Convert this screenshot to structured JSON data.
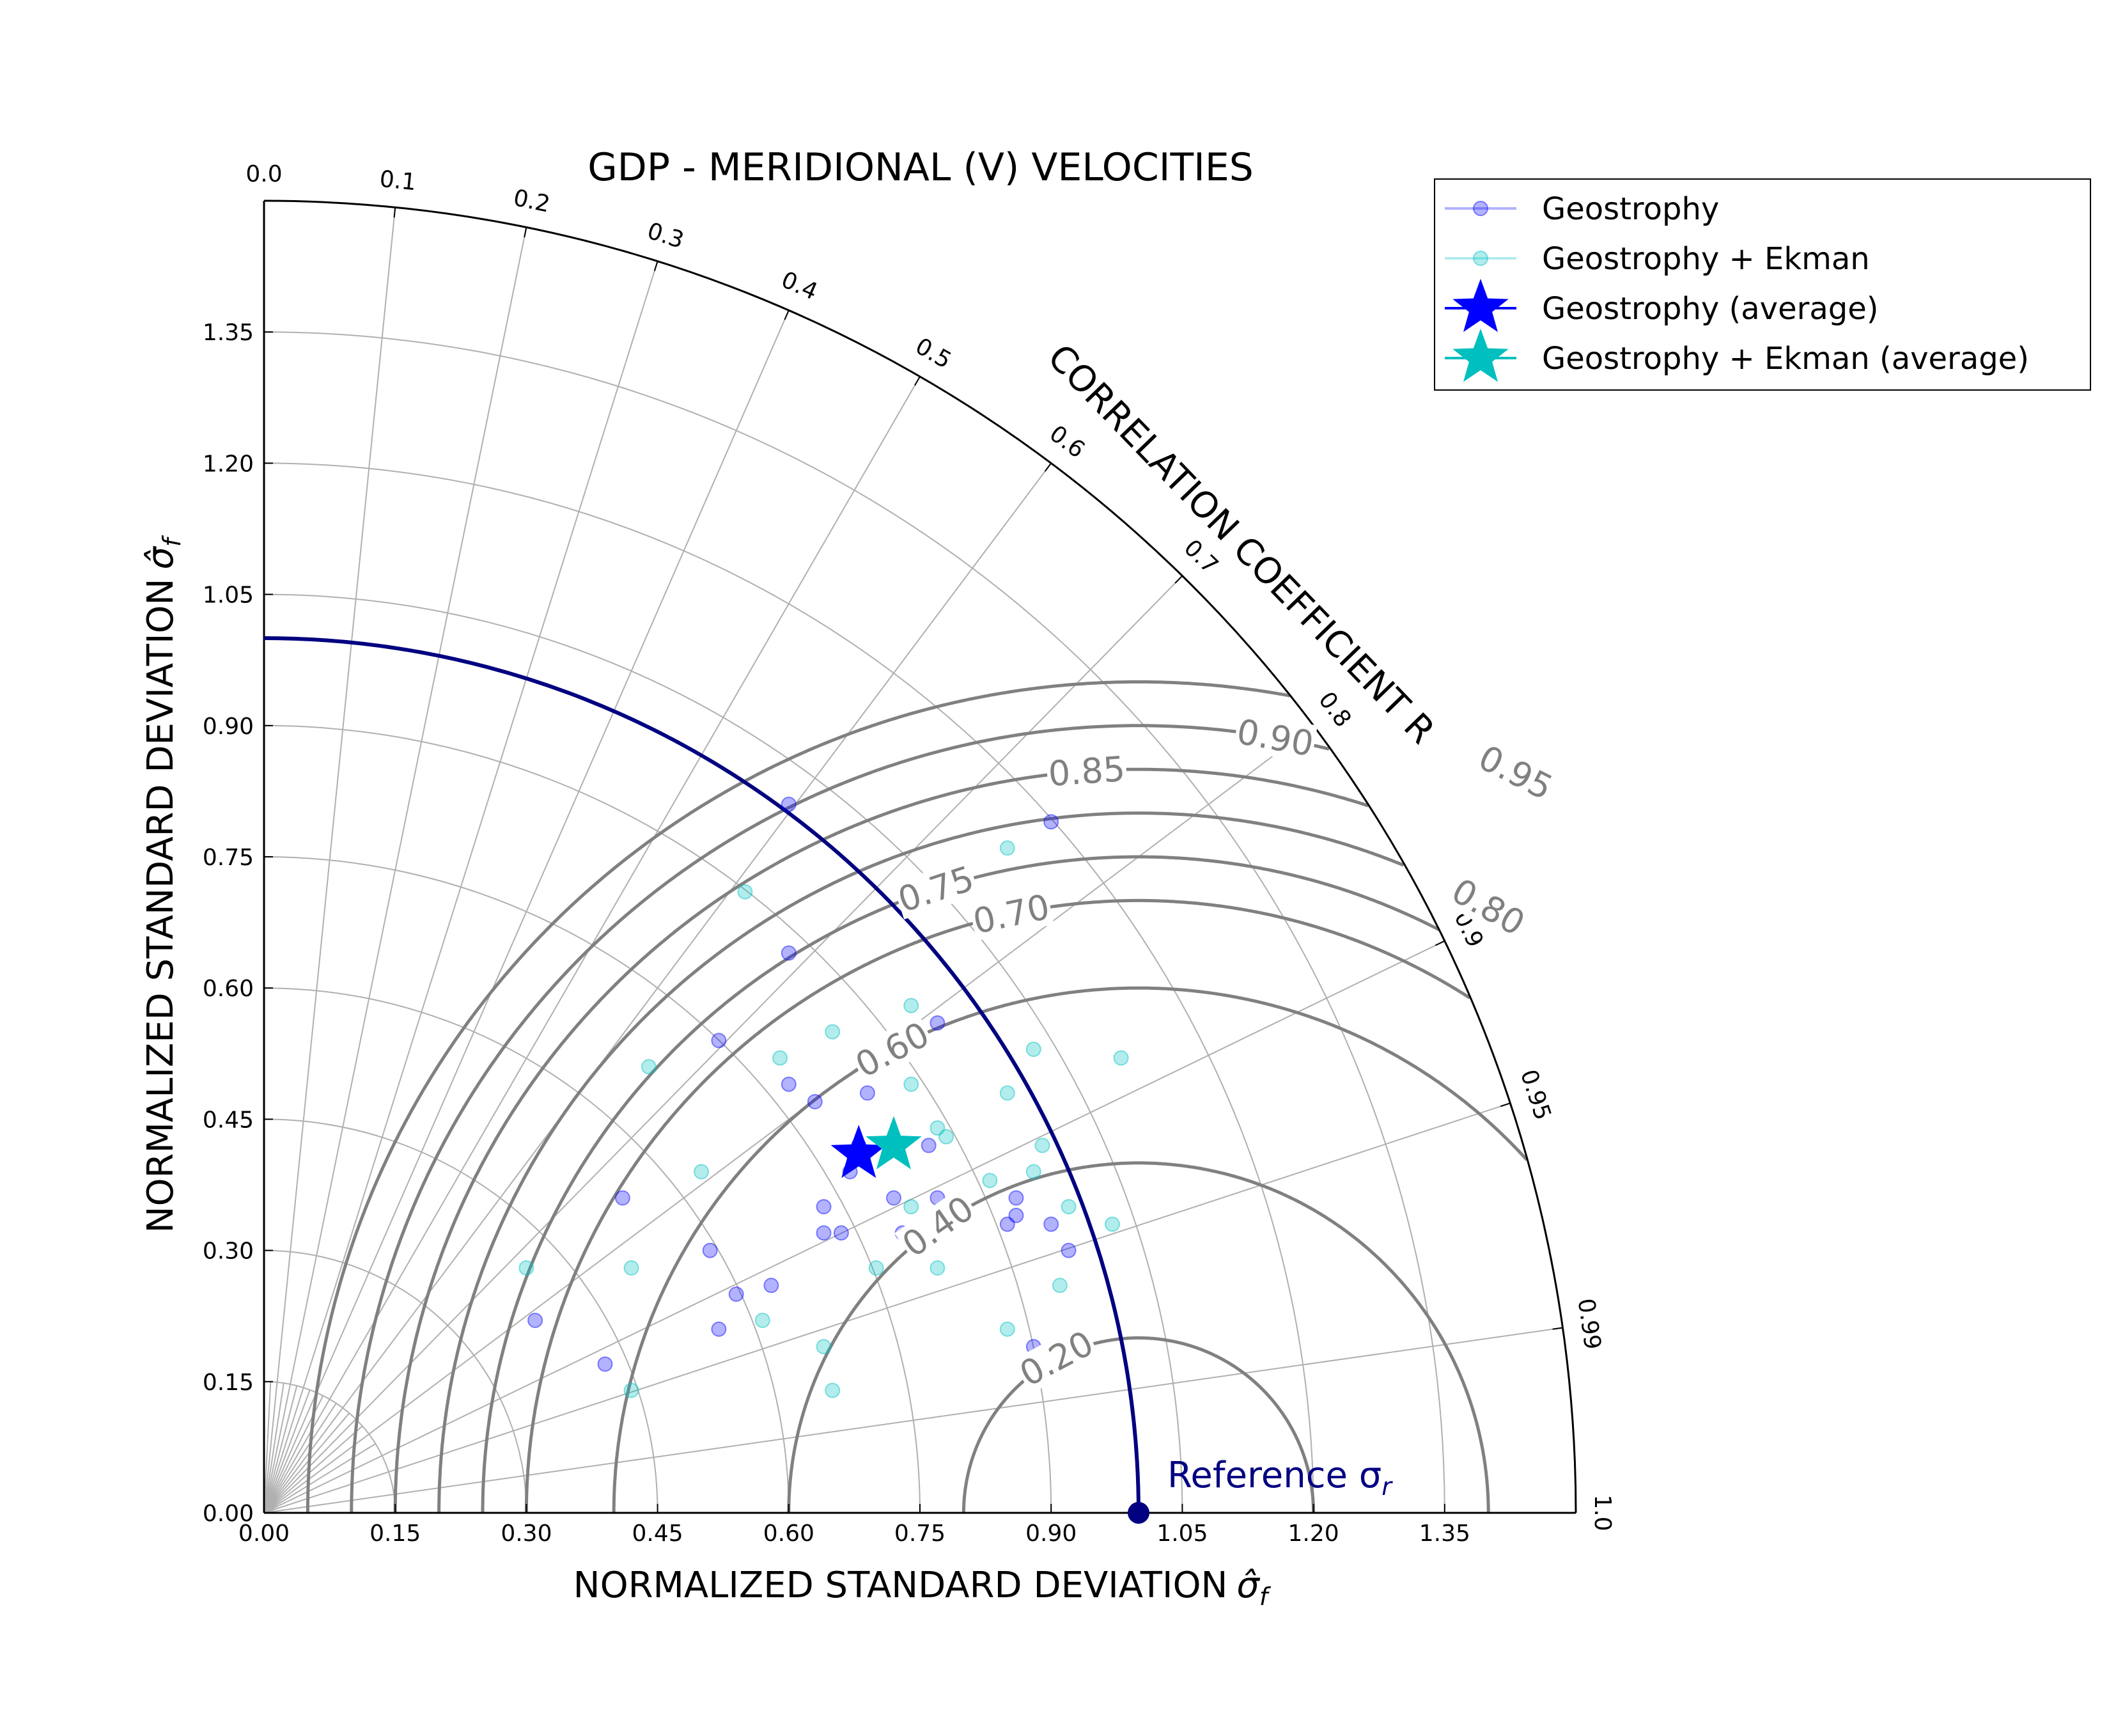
{
  "chart_data": {
    "type": "scatter",
    "title": "GDP - MERIDIONAL (V) VELOCITIES",
    "xlabel": "NORMALIZED STANDARD DEVIATION",
    "ylabel": "NORMALIZED STANDARD DEVIATION",
    "sigma_symbol": "σ̂",
    "sigma_subscript": "f",
    "corr_label": "CORRELATION COEFFICIENT R",
    "reference_label": "Reference σ",
    "reference_subscript": "r",
    "reference_std": 1.0,
    "xlim": [
      0,
      1.5
    ],
    "ylim": [
      0,
      1.5
    ],
    "std_ticks": [
      "0.00",
      "0.15",
      "0.30",
      "0.45",
      "0.60",
      "0.75",
      "0.90",
      "1.05",
      "1.20",
      "1.35"
    ],
    "corr_ticks": [
      "0.0",
      "0.1",
      "0.2",
      "0.3",
      "0.4",
      "0.5",
      "0.6",
      "0.7",
      "0.8",
      "0.9",
      "0.95",
      "0.99",
      "1.0"
    ],
    "corr_tick_values": [
      0.0,
      0.1,
      0.2,
      0.3,
      0.4,
      0.5,
      0.6,
      0.7,
      0.8,
      0.9,
      0.95,
      0.99,
      1.0
    ],
    "corr_grid_values": [
      0.1,
      0.2,
      0.3,
      0.4,
      0.5,
      0.6,
      0.7,
      0.8,
      0.9,
      0.95,
      0.99
    ],
    "std_grid_values": [
      0.15,
      0.3,
      0.45,
      0.6,
      0.75,
      0.9,
      1.05,
      1.2,
      1.35
    ],
    "contour_levels": [
      0.2,
      0.4,
      0.6,
      0.7,
      0.75,
      0.8,
      0.85,
      0.9,
      0.95
    ],
    "contour_labels": [
      {
        "text": "0.20",
        "level": 0.2
      },
      {
        "text": "0.40",
        "level": 0.4
      },
      {
        "text": "0.60",
        "level": 0.6
      },
      {
        "text": "0.70",
        "level": 0.7
      },
      {
        "text": "0.75",
        "level": 0.75
      },
      {
        "text": "0.80",
        "level": 0.8
      },
      {
        "text": "0.85",
        "level": 0.85
      },
      {
        "text": "0.90",
        "level": 0.9
      },
      {
        "text": "0.95",
        "level": 0.95
      }
    ],
    "colors": {
      "geostrophy": "#0000ff",
      "geostrophy_ekman": "#00bfbf",
      "reference": "#000080",
      "contour": "#808080",
      "grid": "#b0b0b0"
    },
    "legend_position": "top-right",
    "series": [
      {
        "name": "Geostrophy",
        "marker": "circle",
        "x": [
          0.6,
          0.9,
          0.6,
          0.52,
          0.77,
          0.68,
          0.6,
          0.63,
          0.67,
          0.69,
          0.76,
          0.72,
          0.86,
          0.73,
          0.77,
          0.86,
          0.85,
          0.64,
          0.75,
          0.78,
          0.9,
          0.92,
          0.51,
          0.58,
          0.54,
          0.52,
          0.88,
          0.31,
          0.39,
          0.41,
          0.66,
          0.64
        ],
        "y": [
          0.81,
          0.79,
          0.64,
          0.54,
          0.56,
          0.42,
          0.49,
          0.47,
          0.39,
          0.48,
          0.42,
          0.36,
          0.36,
          0.32,
          0.36,
          0.34,
          0.33,
          0.32,
          0.32,
          0.32,
          0.33,
          0.3,
          0.3,
          0.26,
          0.25,
          0.21,
          0.19,
          0.22,
          0.17,
          0.36,
          0.32,
          0.35
        ]
      },
      {
        "name": "Geostrophy + Ekman",
        "marker": "circle",
        "x": [
          0.85,
          0.55,
          0.74,
          0.65,
          0.59,
          0.88,
          0.98,
          0.44,
          0.74,
          0.77,
          0.78,
          0.85,
          0.89,
          0.5,
          0.83,
          0.88,
          0.74,
          0.78,
          0.92,
          0.97,
          0.7,
          0.77,
          0.3,
          0.42,
          0.91,
          0.57,
          0.85,
          0.64,
          0.65,
          0.42
        ],
        "y": [
          0.76,
          0.71,
          0.58,
          0.55,
          0.52,
          0.53,
          0.52,
          0.51,
          0.49,
          0.44,
          0.43,
          0.48,
          0.42,
          0.39,
          0.38,
          0.39,
          0.35,
          0.34,
          0.35,
          0.33,
          0.28,
          0.28,
          0.28,
          0.28,
          0.26,
          0.22,
          0.21,
          0.19,
          0.14,
          0.14
        ]
      },
      {
        "name": "Geostrophy (average)",
        "marker": "star",
        "x": [
          0.68
        ],
        "y": [
          0.41
        ]
      },
      {
        "name": "Geostrophy + Ekman (average)",
        "marker": "star",
        "x": [
          0.72
        ],
        "y": [
          0.42
        ]
      }
    ]
  }
}
